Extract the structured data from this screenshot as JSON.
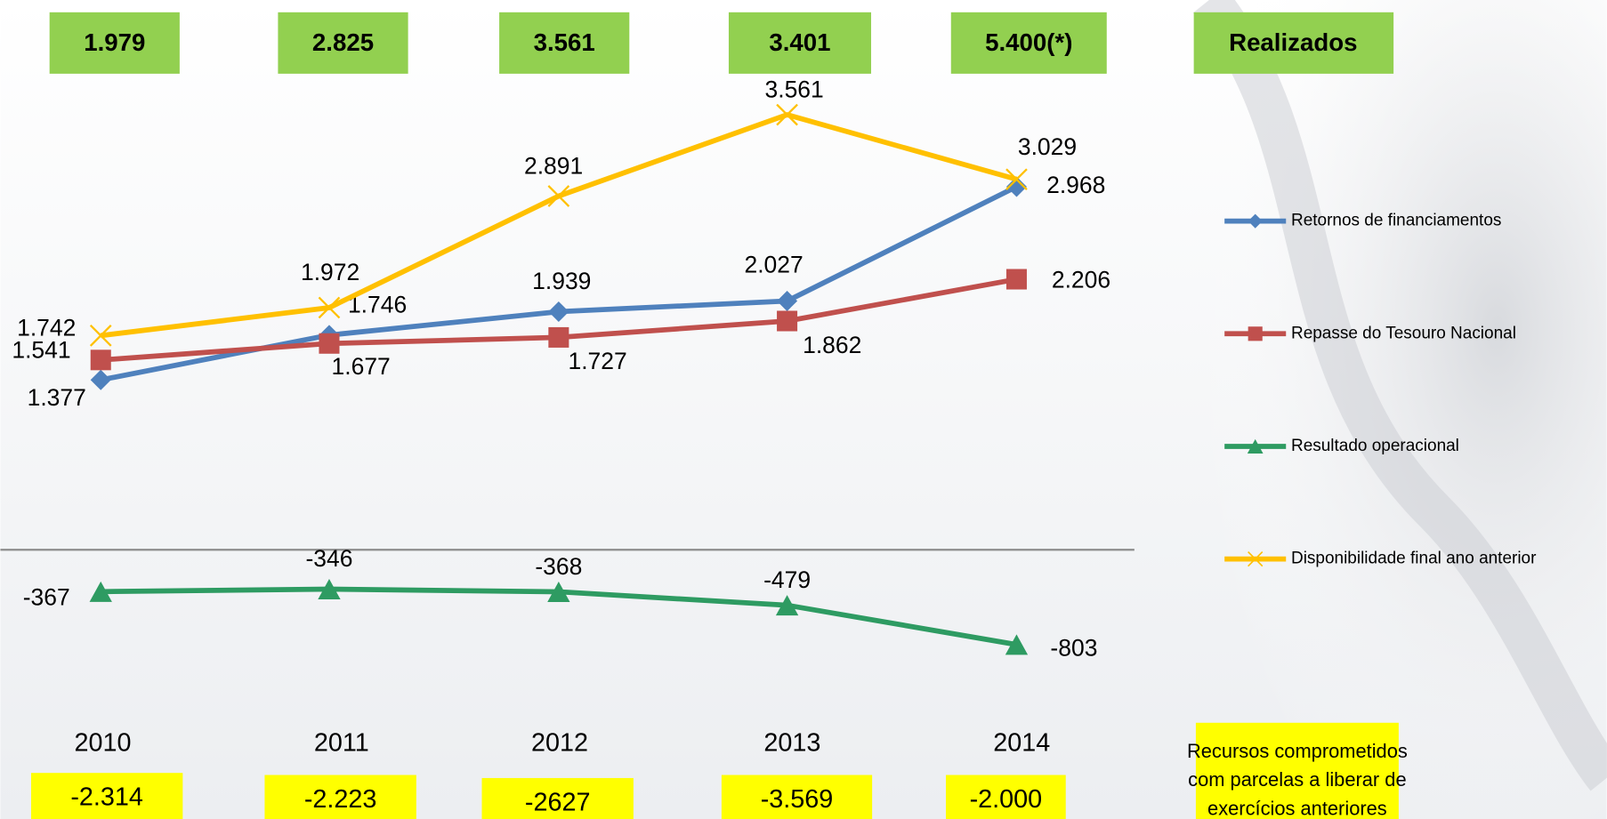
{
  "chart_data": {
    "type": "line",
    "categories": [
      "2010",
      "2011",
      "2012",
      "2013",
      "2014"
    ],
    "series": [
      {
        "name": "Retornos de financiamentos",
        "color": "#4f81bd",
        "marker": "diamond",
        "values": [
          1377,
          1746,
          1939,
          2027,
          2968
        ],
        "value_labels": [
          "1.377",
          "1.746",
          "1.939",
          "2.027",
          "2.968"
        ]
      },
      {
        "name": "Repasse do Tesouro Nacional",
        "color": "#c0504d",
        "marker": "square",
        "values": [
          1541,
          1677,
          1727,
          1862,
          2206
        ],
        "value_labels": [
          "1.541",
          "1.677",
          "1.727",
          "1.862",
          "2.206"
        ]
      },
      {
        "name": "Resultado operacional",
        "color": "#2e9b62",
        "marker": "triangle",
        "values": [
          -367,
          -346,
          -368,
          -479,
          -803
        ],
        "value_labels": [
          "-367",
          "-346",
          "-368",
          "-479",
          "-803"
        ]
      },
      {
        "name": "Disponibilidade final ano anterior",
        "color": "#ffc000",
        "marker": "x",
        "values": [
          1742,
          1972,
          2891,
          3561,
          3029
        ],
        "value_labels": [
          "1.742",
          "1.972",
          "2.891",
          "3.561",
          "3.029"
        ]
      }
    ],
    "ylim": [
      -1000,
      4000
    ],
    "legend": "right"
  },
  "realizados": {
    "label": "Realizados",
    "values": [
      "1.979",
      "2.825",
      "3.561",
      "3.401",
      "5.400(*)"
    ]
  },
  "comprometidos": {
    "label_lines": [
      "Recursos comprometidos",
      "com parcelas a liberar de",
      "exercícios anteriores"
    ],
    "values": [
      "-2.314",
      "-2.223",
      "-2627",
      "-3.569",
      "-2.000"
    ]
  }
}
